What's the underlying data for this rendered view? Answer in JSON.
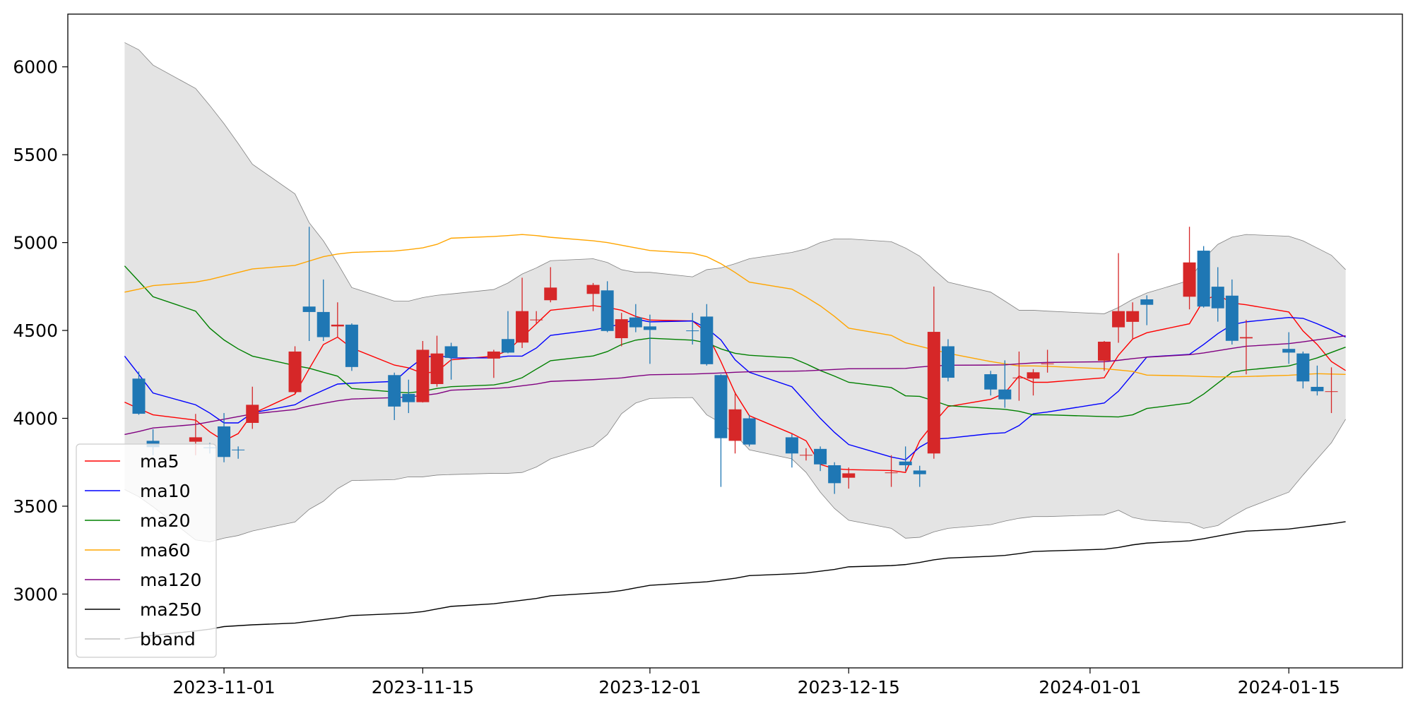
{
  "chart_data": {
    "type": "candlestick",
    "x": [
      "2023-10-25",
      "2023-10-26",
      "2023-10-27",
      "2023-10-30",
      "2023-10-31",
      "2023-11-01",
      "2023-11-02",
      "2023-11-03",
      "2023-11-06",
      "2023-11-07",
      "2023-11-08",
      "2023-11-09",
      "2023-11-10",
      "2023-11-13",
      "2023-11-14",
      "2023-11-15",
      "2023-11-16",
      "2023-11-17",
      "2023-11-20",
      "2023-11-21",
      "2023-11-22",
      "2023-11-23",
      "2023-11-24",
      "2023-11-27",
      "2023-11-28",
      "2023-11-29",
      "2023-11-30",
      "2023-12-01",
      "2023-12-04",
      "2023-12-05",
      "2023-12-06",
      "2023-12-07",
      "2023-12-08",
      "2023-12-11",
      "2023-12-12",
      "2023-12-13",
      "2023-12-14",
      "2023-12-15",
      "2023-12-18",
      "2023-12-19",
      "2023-12-20",
      "2023-12-21",
      "2023-12-22",
      "2023-12-25",
      "2023-12-26",
      "2023-12-27",
      "2023-12-28",
      "2023-12-29",
      "2024-01-02",
      "2024-01-03",
      "2024-01-04",
      "2024-01-05",
      "2024-01-08",
      "2024-01-09",
      "2024-01-10",
      "2024-01-11",
      "2024-01-12",
      "2024-01-15",
      "2024-01-16",
      "2024-01-17",
      "2024-01-18",
      "2024-01-19"
    ],
    "candles": {
      "up_color": "#d62728",
      "down_color": "#1f77b4",
      "x": [
        "2023-10-26",
        "2023-10-27",
        "2023-10-30",
        "2023-10-31",
        "2023-11-01",
        "2023-11-02",
        "2023-11-03",
        "2023-11-06",
        "2023-11-07",
        "2023-11-08",
        "2023-11-09",
        "2023-11-10",
        "2023-11-13",
        "2023-11-14",
        "2023-11-15",
        "2023-11-16",
        "2023-11-17",
        "2023-11-20",
        "2023-11-21",
        "2023-11-22",
        "2023-11-23",
        "2023-11-24",
        "2023-11-27",
        "2023-11-28",
        "2023-11-29",
        "2023-11-30",
        "2023-12-01",
        "2023-12-04",
        "2023-12-05",
        "2023-12-06",
        "2023-12-07",
        "2023-12-08",
        "2023-12-11",
        "2023-12-12",
        "2023-12-13",
        "2023-12-14",
        "2023-12-15",
        "2023-12-18",
        "2023-12-19",
        "2023-12-20",
        "2023-12-21",
        "2023-12-22",
        "2023-12-25",
        "2023-12-26",
        "2023-12-27",
        "2023-12-28",
        "2023-12-29",
        "2024-01-02",
        "2024-01-03",
        "2024-01-04",
        "2024-01-05",
        "2024-01-08",
        "2024-01-09",
        "2024-01-10",
        "2024-01-11",
        "2024-01-12",
        "2024-01-15",
        "2024-01-16",
        "2024-01-17",
        "2024-01-18"
      ],
      "open": [
        4226,
        3872,
        3867,
        3835,
        3954,
        3822,
        3974,
        4149,
        4636,
        4605,
        4523,
        4533,
        4246,
        4139,
        4092,
        4195,
        4410,
        4340,
        4451,
        4431,
        4558,
        4672,
        4708,
        4728,
        4456,
        4574,
        4523,
        4500,
        4579,
        4246,
        3872,
        4000,
        3892,
        3788,
        3826,
        3733,
        3662,
        3688,
        3754,
        3703,
        3800,
        4410,
        4251,
        4164,
        4228,
        4226,
        4308,
        4328,
        4518,
        4549,
        4677,
        4692,
        4954,
        4749,
        4698,
        4455,
        4395,
        4369,
        4179,
        4150
      ],
      "high": [
        4267,
        3938,
        4025,
        3860,
        4030,
        3840,
        4180,
        4410,
        5090,
        4790,
        4660,
        4540,
        4260,
        4220,
        4440,
        4470,
        4430,
        4390,
        4610,
        4800,
        4610,
        4860,
        4770,
        4780,
        4600,
        4650,
        4590,
        4600,
        4650,
        4250,
        4150,
        4020,
        3910,
        3830,
        3840,
        3750,
        3720,
        3790,
        3840,
        3730,
        4750,
        4450,
        4270,
        4330,
        4380,
        4280,
        4390,
        4440,
        4940,
        4660,
        4700,
        5090,
        4980,
        4860,
        4790,
        4560,
        4490,
        4380,
        4300,
        4290
      ],
      "low": [
        4020,
        3790,
        3790,
        3800,
        3750,
        3770,
        3940,
        4140,
        4440,
        4440,
        4460,
        4270,
        3990,
        4030,
        4090,
        4180,
        4220,
        4230,
        4370,
        4400,
        4540,
        4660,
        4610,
        4490,
        4410,
        4490,
        4310,
        4420,
        4300,
        3610,
        3800,
        3840,
        3720,
        3760,
        3700,
        3570,
        3600,
        3610,
        3700,
        3610,
        3770,
        4210,
        4130,
        4060,
        4100,
        4130,
        4260,
        4270,
        4430,
        4450,
        4530,
        4620,
        4630,
        4550,
        4420,
        4250,
        4310,
        4170,
        4130,
        4030
      ],
      "close": [
        4026,
        3836,
        3892,
        3830,
        3780,
        3818,
        4077,
        4380,
        4605,
        4462,
        4533,
        4292,
        4067,
        4092,
        4390,
        4369,
        4344,
        4380,
        4374,
        4610,
        4562,
        4744,
        4759,
        4497,
        4564,
        4518,
        4503,
        4498,
        4308,
        3887,
        4051,
        3851,
        3800,
        3792,
        3738,
        3631,
        3687,
        3692,
        3733,
        3682,
        4492,
        4231,
        4164,
        4108,
        4232,
        4262,
        4312,
        4436,
        4610,
        4610,
        4646,
        4887,
        4636,
        4626,
        4441,
        4462,
        4374,
        4210,
        4154,
        4154
      ]
    },
    "series": [
      {
        "name": "ma5",
        "color": "red",
        "values": [
          4092,
          4055,
          4020,
          3990,
          3923,
          3872,
          3913,
          4026,
          4138,
          4282,
          4420,
          4462,
          4400,
          4303,
          4287,
          4256,
          4266,
          4333,
          4354,
          4385,
          4462,
          4538,
          4615,
          4641,
          4631,
          4615,
          4580,
          4559,
          4554,
          4487,
          4323,
          4144,
          4015,
          3913,
          3872,
          3738,
          3713,
          3708,
          3703,
          3692,
          3872,
          3974,
          4067,
          4108,
          4144,
          4241,
          4205,
          4205,
          4231,
          4359,
          4451,
          4487,
          4538,
          4672,
          4703,
          4656,
          4646,
          4605,
          4497,
          4420,
          4323,
          4272
        ]
      },
      {
        "name": "ma10",
        "color": "blue",
        "values": [
          4354,
          4250,
          4144,
          4077,
          4030,
          3974,
          3974,
          4031,
          4077,
          4123,
          4160,
          4195,
          4200,
          4210,
          4282,
          4344,
          4359,
          4344,
          4344,
          4354,
          4354,
          4400,
          4472,
          4503,
          4518,
          4538,
          4564,
          4549,
          4554,
          4513,
          4446,
          4333,
          4262,
          4180,
          4090,
          4000,
          3920,
          3851,
          3780,
          3764,
          3836,
          3882,
          3887,
          3913,
          3918,
          3959,
          4026,
          4036,
          4087,
          4154,
          4251,
          4349,
          4364,
          4420,
          4482,
          4533,
          4549,
          4574,
          4569,
          4538,
          4503,
          4462
        ]
      },
      {
        "name": "ma20",
        "color": "green",
        "values": [
          4867,
          4780,
          4692,
          4610,
          4513,
          4446,
          4395,
          4354,
          4300,
          4285,
          4262,
          4240,
          4170,
          4150,
          4145,
          4154,
          4170,
          4180,
          4190,
          4205,
          4231,
          4280,
          4328,
          4355,
          4380,
          4420,
          4445,
          4456,
          4445,
          4430,
          4395,
          4370,
          4359,
          4344,
          4310,
          4272,
          4240,
          4205,
          4175,
          4128,
          4125,
          4100,
          4072,
          4056,
          4051,
          4040,
          4020,
          4020,
          4010,
          4008,
          4020,
          4056,
          4087,
          4138,
          4200,
          4262,
          4275,
          4298,
          4320,
          4344,
          4375,
          4405
        ]
      },
      {
        "name": "ma60",
        "color": "orange",
        "values": [
          4718,
          4735,
          4755,
          4775,
          4790,
          4810,
          4830,
          4850,
          4870,
          4895,
          4920,
          4935,
          4944,
          4952,
          4960,
          4970,
          4990,
          5025,
          5035,
          5040,
          5046,
          5040,
          5030,
          5010,
          5000,
          4985,
          4970,
          4955,
          4940,
          4920,
          4880,
          4830,
          4775,
          4735,
          4690,
          4640,
          4580,
          4513,
          4472,
          4430,
          4410,
          4390,
          4370,
          4323,
          4310,
          4298,
          4298,
          4296,
          4282,
          4275,
          4267,
          4246,
          4241,
          4238,
          4236,
          4236,
          4238,
          4245,
          4250,
          4254,
          4252,
          4250
        ]
      },
      {
        "name": "ma120",
        "color": "purple",
        "values": [
          3908,
          3925,
          3945,
          3965,
          3980,
          3995,
          4010,
          4025,
          4050,
          4070,
          4085,
          4100,
          4110,
          4118,
          4122,
          4130,
          4140,
          4160,
          4170,
          4175,
          4185,
          4195,
          4210,
          4220,
          4225,
          4230,
          4240,
          4248,
          4252,
          4255,
          4258,
          4262,
          4265,
          4268,
          4270,
          4274,
          4278,
          4282,
          4283,
          4284,
          4292,
          4298,
          4302,
          4303,
          4304,
          4310,
          4315,
          4318,
          4322,
          4330,
          4340,
          4348,
          4362,
          4372,
          4385,
          4398,
          4410,
          4425,
          4435,
          4447,
          4458,
          4470
        ]
      },
      {
        "name": "ma250",
        "color": "black",
        "values": [
          2745,
          2755,
          2765,
          2790,
          2800,
          2815,
          2820,
          2825,
          2835,
          2845,
          2855,
          2865,
          2878,
          2888,
          2892,
          2900,
          2915,
          2930,
          2945,
          2955,
          2965,
          2975,
          2990,
          3005,
          3010,
          3020,
          3035,
          3050,
          3065,
          3070,
          3080,
          3090,
          3105,
          3115,
          3120,
          3130,
          3140,
          3155,
          3162,
          3168,
          3180,
          3195,
          3205,
          3215,
          3220,
          3230,
          3242,
          3245,
          3255,
          3265,
          3280,
          3290,
          3303,
          3315,
          3330,
          3345,
          3358,
          3370,
          3380,
          3390,
          3400,
          3412
        ]
      }
    ],
    "bband": {
      "name": "bband",
      "color": "gray",
      "fill": "#e4e4e4",
      "upper": [
        6138,
        6097,
        6010,
        5877,
        5780,
        5677,
        5564,
        5446,
        5277,
        5113,
        5010,
        4882,
        4744,
        4667,
        4667,
        4687,
        4700,
        4708,
        4733,
        4770,
        4821,
        4856,
        4897,
        4908,
        4887,
        4846,
        4831,
        4831,
        4805,
        4846,
        4856,
        4880,
        4908,
        4944,
        4964,
        5000,
        5021,
        5021,
        5005,
        4969,
        4923,
        4846,
        4775,
        4718,
        4667,
        4615,
        4615,
        4610,
        4595,
        4631,
        4677,
        4713,
        4785,
        4908,
        4990,
        5031,
        5046,
        5036,
        5010,
        4969,
        4928,
        4846
      ],
      "lower": [
        3595,
        3554,
        3497,
        3308,
        3297,
        3318,
        3333,
        3359,
        3410,
        3482,
        3528,
        3600,
        3646,
        3651,
        3667,
        3667,
        3677,
        3680,
        3687,
        3687,
        3692,
        3723,
        3769,
        3841,
        3908,
        4026,
        4087,
        4113,
        4118,
        4020,
        3974,
        3908,
        3821,
        3769,
        3692,
        3580,
        3487,
        3420,
        3374,
        3318,
        3323,
        3354,
        3374,
        3395,
        3415,
        3431,
        3441,
        3441,
        3451,
        3477,
        3436,
        3420,
        3405,
        3374,
        3390,
        3441,
        3487,
        3580,
        3677,
        3769,
        3861,
        3995
      ]
    },
    "xlim": [
      "2023-10-21",
      "2024-01-23"
    ],
    "xticks": [
      "2023-11-01",
      "2023-11-15",
      "2023-12-01",
      "2023-12-15",
      "2024-01-01",
      "2024-01-15"
    ],
    "ylim": [
      2580,
      6300
    ],
    "yticks": [
      3000,
      3500,
      4000,
      4500,
      5000,
      5500,
      6000
    ],
    "grid": false,
    "legend": "lower left"
  }
}
